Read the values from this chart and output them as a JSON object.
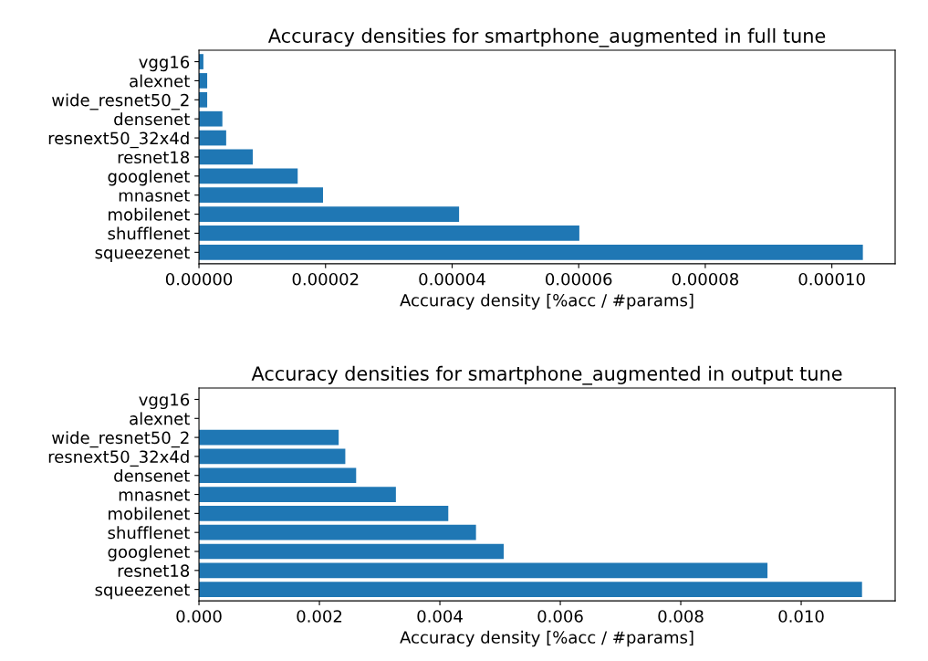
{
  "chart_data": [
    {
      "type": "bar",
      "orientation": "horizontal",
      "title": "Accuracy densities for smartphone_augmented in full tune",
      "xlabel": "Accuracy density [%acc / #params]",
      "categories": [
        "vgg16",
        "alexnet",
        "wide_resnet50_2",
        "densenet",
        "resnext50_32x4d",
        "resnet18",
        "googlenet",
        "mnasnet",
        "mobilenet",
        "shufflenet",
        "squeezenet"
      ],
      "values": [
        7e-07,
        1.3e-06,
        1.3e-06,
        3.7e-06,
        4.3e-06,
        8.5e-06,
        1.56e-05,
        1.96e-05,
        4.11e-05,
        6.01e-05,
        0.0001049
      ],
      "color": "#1f77b4",
      "xlim": [
        0,
        0.00011
      ],
      "xticks": [
        {
          "value": 0,
          "label": "0.00000"
        },
        {
          "value": 2e-05,
          "label": "0.00002"
        },
        {
          "value": 4e-05,
          "label": "0.00004"
        },
        {
          "value": 6e-05,
          "label": "0.00006"
        },
        {
          "value": 8e-05,
          "label": "0.00008"
        },
        {
          "value": 0.0001,
          "label": "0.00010"
        }
      ]
    },
    {
      "type": "bar",
      "orientation": "horizontal",
      "title": "Accuracy densities for smartphone_augmented in output tune",
      "xlabel": "Accuracy density [%acc / #params]",
      "categories": [
        "vgg16",
        "alexnet",
        "wide_resnet50_2",
        "resnext50_32x4d",
        "densenet",
        "mnasnet",
        "mobilenet",
        "shufflenet",
        "googlenet",
        "resnet18",
        "squeezenet"
      ],
      "values": [
        0,
        0,
        0.00232,
        0.00243,
        0.00261,
        0.00327,
        0.00414,
        0.0046,
        0.00506,
        0.00944,
        0.01101
      ],
      "color": "#1f77b4",
      "xlim": [
        0,
        0.01156
      ],
      "xticks": [
        {
          "value": 0,
          "label": "0.000"
        },
        {
          "value": 0.002,
          "label": "0.002"
        },
        {
          "value": 0.004,
          "label": "0.004"
        },
        {
          "value": 0.006,
          "label": "0.006"
        },
        {
          "value": 0.008,
          "label": "0.008"
        },
        {
          "value": 0.01,
          "label": "0.010"
        }
      ]
    }
  ]
}
